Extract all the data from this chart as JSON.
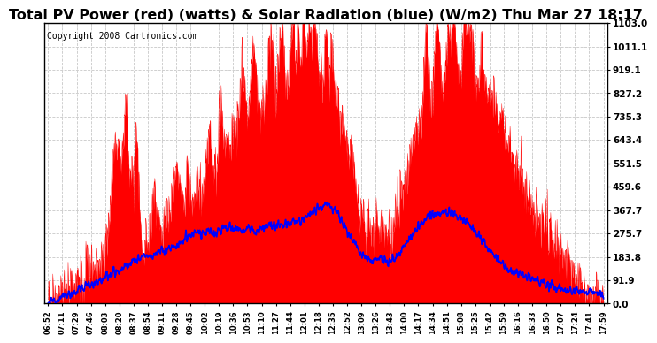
{
  "title": "Total PV Power (red) (watts) & Solar Radiation (blue) (W/m2) Thu Mar 27 18:17",
  "copyright": "Copyright 2008 Cartronics.com",
  "ymin": 0.0,
  "ymax": 1103.0,
  "ytick_values": [
    0.0,
    91.9,
    183.8,
    275.7,
    367.7,
    459.6,
    551.5,
    643.4,
    735.3,
    827.2,
    919.1,
    1011.1,
    1103.0
  ],
  "ytick_labels": [
    "0.0",
    "91.9",
    "183.8",
    "275.7",
    "367.7",
    "459.6",
    "551.5",
    "643.4",
    "735.3",
    "827.2",
    "919.1",
    "1011.1",
    "1103.0"
  ],
  "xtick_labels": [
    "06:52",
    "07:11",
    "07:29",
    "07:46",
    "08:03",
    "08:20",
    "08:37",
    "08:54",
    "09:11",
    "09:28",
    "09:45",
    "10:02",
    "10:19",
    "10:36",
    "10:53",
    "11:10",
    "11:27",
    "11:44",
    "12:01",
    "12:18",
    "12:35",
    "12:52",
    "13:09",
    "13:26",
    "13:43",
    "14:00",
    "14:17",
    "14:34",
    "14:51",
    "15:08",
    "15:25",
    "15:42",
    "15:59",
    "16:16",
    "16:33",
    "16:50",
    "17:07",
    "17:24",
    "17:41",
    "17:59"
  ],
  "bg_color": "#ffffff",
  "red_color": "#ff0000",
  "blue_color": "#0000ff",
  "grid_color": "#c8c8c8",
  "title_fontsize": 11.5,
  "copyright_fontsize": 7,
  "tick_fontsize": 7.5,
  "xtick_fontsize": 6
}
